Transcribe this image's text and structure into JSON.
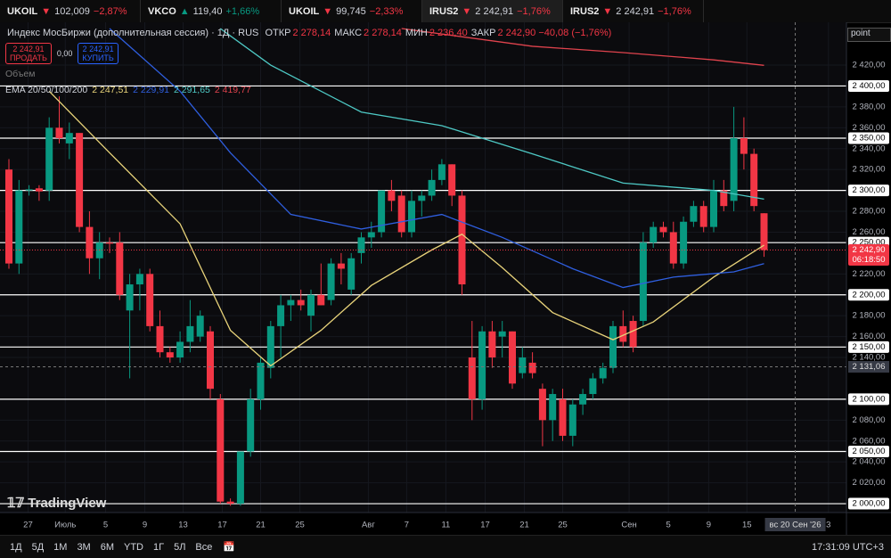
{
  "tabs": [
    {
      "symbol": "UKOIL",
      "price": "102,009",
      "change": "−2,87%",
      "dir": "down"
    },
    {
      "symbol": "VKCO",
      "price": "119,40",
      "change": "+1,66%",
      "dir": "up"
    },
    {
      "symbol": "UKOIL",
      "price": "99,745",
      "change": "−2,33%",
      "dir": "down"
    },
    {
      "symbol": "IRUS2",
      "price": "2 242,91",
      "change": "−1,76%",
      "dir": "down"
    },
    {
      "symbol": "IRUS2",
      "price": "2 242,91",
      "change": "−1,76%",
      "dir": "down"
    }
  ],
  "search": "point",
  "legend": {
    "title": "Индекс МосБиржи (дополнительная сессия) · 1Д · RUS",
    "ohlc": [
      {
        "label": "ОТКР",
        "value": "2 278,14"
      },
      {
        "label": "МАКС",
        "value": "2 278,14"
      },
      {
        "label": "МИН",
        "value": "2 236,40"
      },
      {
        "label": "ЗАКР",
        "value": "2 242,90"
      }
    ],
    "change": "−40,08 (−1,76%)",
    "sell": {
      "price": "2 242,91",
      "label": "ПРОДАТЬ"
    },
    "spread": "0,00",
    "buy": {
      "price": "2 242,91",
      "label": "КУПИТЬ"
    },
    "volume": "Объем",
    "ema": {
      "label": "EMA 20/50/100/200",
      "values": [
        "2 247,51",
        "2 229,91",
        "2 291,65",
        "2 419,77"
      ]
    }
  },
  "watermark": "TradingView",
  "toolbar": {
    "ranges": [
      "1Д",
      "5Д",
      "1М",
      "3М",
      "6М",
      "YTD",
      "1Г",
      "5Л",
      "Все"
    ],
    "clock": "17:31:09 UTC+3"
  },
  "chart_data": {
    "type": "candlestick",
    "up_color": "#089981",
    "down_color": "#f23645",
    "ylim": [
      1991.5,
      2461
    ],
    "yticks": [
      {
        "value": 2420,
        "label": "2 420,00"
      },
      {
        "value": 2380,
        "label": "2 380,00"
      },
      {
        "value": 2360,
        "label": "2 360,00"
      },
      {
        "value": 2340,
        "label": "2 340,00"
      },
      {
        "value": 2320,
        "label": "2 320,00"
      },
      {
        "value": 2280,
        "label": "2 280,00"
      },
      {
        "value": 2260,
        "label": "2 260,00"
      },
      {
        "value": 2220,
        "label": "2 220,00"
      },
      {
        "value": 2180,
        "label": "2 180,00"
      },
      {
        "value": 2160,
        "label": "2 160,00"
      },
      {
        "value": 2140,
        "label": "2 140,00"
      },
      {
        "value": 2080,
        "label": "2 080,00"
      },
      {
        "value": 2060,
        "label": "2 060,00"
      },
      {
        "value": 2040,
        "label": "2 040,00"
      },
      {
        "value": 2020,
        "label": "2 020,00"
      }
    ],
    "levels": [
      {
        "value": 2400,
        "label": "2 400,00"
      },
      {
        "value": 2350,
        "label": "2 350,00"
      },
      {
        "value": 2300,
        "label": "2 300,00"
      },
      {
        "value": 2250,
        "label": "2 250,00"
      },
      {
        "value": 2200,
        "label": "2 200,00"
      },
      {
        "value": 2150,
        "label": "2 150,00"
      },
      {
        "value": 2100,
        "label": "2 100,00"
      },
      {
        "value": 2050,
        "label": "2 050,00"
      },
      {
        "value": 2000,
        "label": "2 000,00"
      }
    ],
    "last_price": {
      "value": 2242.9,
      "label": "2 242,90",
      "timer": "06:18:50"
    },
    "crosshair": {
      "value": 2131.06,
      "label": "2 131,06",
      "x": 78.1,
      "x_label": "вс 20 Сен '26"
    },
    "xticks": [
      {
        "value": 1.9,
        "label": "27"
      },
      {
        "value": 5.6,
        "label": "Июль"
      },
      {
        "value": 9.6,
        "label": "5"
      },
      {
        "value": 13.5,
        "label": "9"
      },
      {
        "value": 17.3,
        "label": "13"
      },
      {
        "value": 21.2,
        "label": "17"
      },
      {
        "value": 25,
        "label": "21"
      },
      {
        "value": 28.9,
        "label": "25"
      },
      {
        "value": 35.7,
        "label": "Авг"
      },
      {
        "value": 39.5,
        "label": "7"
      },
      {
        "value": 43.4,
        "label": "11"
      },
      {
        "value": 47.3,
        "label": "17"
      },
      {
        "value": 51.2,
        "label": "21"
      },
      {
        "value": 55,
        "label": "25"
      },
      {
        "value": 61.6,
        "label": "Сен"
      },
      {
        "value": 65.5,
        "label": "5"
      },
      {
        "value": 69.5,
        "label": "9"
      },
      {
        "value": 73.3,
        "label": "15"
      },
      {
        "value": 81.4,
        "label": "3"
      }
    ],
    "candles": [
      {
        "o": 2320,
        "h": 2330,
        "l": 2225,
        "c": 2230
      },
      {
        "o": 2230,
        "h": 2310,
        "l": 2220,
        "c": 2300
      },
      {
        "o": 2300,
        "h": 2305,
        "l": 2295,
        "c": 2301
      },
      {
        "o": 2302,
        "h": 2305,
        "l": 2290,
        "c": 2299
      },
      {
        "o": 2300,
        "h": 2370,
        "l": 2290,
        "c": 2360
      },
      {
        "o": 2360,
        "h": 2390,
        "l": 2345,
        "c": 2350
      },
      {
        "o": 2345,
        "h": 2365,
        "l": 2330,
        "c": 2355
      },
      {
        "o": 2355,
        "h": 2355,
        "l": 2260,
        "c": 2265
      },
      {
        "o": 2265,
        "h": 2280,
        "l": 2220,
        "c": 2235
      },
      {
        "o": 2235,
        "h": 2260,
        "l": 2215,
        "c": 2250
      },
      {
        "o": 2250,
        "h": 2255,
        "l": 2240,
        "c": 2249
      },
      {
        "o": 2250,
        "h": 2260,
        "l": 2195,
        "c": 2200
      },
      {
        "o": 2185,
        "h": 2220,
        "l": 2120,
        "c": 2210
      },
      {
        "o": 2210,
        "h": 2225,
        "l": 2185,
        "c": 2220
      },
      {
        "o": 2220,
        "h": 2225,
        "l": 2165,
        "c": 2170
      },
      {
        "o": 2170,
        "h": 2185,
        "l": 2140,
        "c": 2145
      },
      {
        "o": 2145,
        "h": 2150,
        "l": 2135,
        "c": 2140
      },
      {
        "o": 2140,
        "h": 2165,
        "l": 2135,
        "c": 2155
      },
      {
        "o": 2155,
        "h": 2195,
        "l": 2145,
        "c": 2170
      },
      {
        "o": 2160,
        "h": 2185,
        "l": 2155,
        "c": 2180
      },
      {
        "o": 2165,
        "h": 2170,
        "l": 2100,
        "c": 2110
      },
      {
        "o": 2100,
        "h": 2105,
        "l": 2000,
        "c": 2002
      },
      {
        "o": 2002,
        "h": 2005,
        "l": 1998,
        "c": 2000
      },
      {
        "o": 2000,
        "h": 2050,
        "l": 1998,
        "c": 2050
      },
      {
        "o": 2050,
        "h": 2110,
        "l": 2045,
        "c": 2100
      },
      {
        "o": 2100,
        "h": 2140,
        "l": 2090,
        "c": 2135
      },
      {
        "o": 2130,
        "h": 2175,
        "l": 2120,
        "c": 2170
      },
      {
        "o": 2170,
        "h": 2200,
        "l": 2140,
        "c": 2190
      },
      {
        "o": 2190,
        "h": 2200,
        "l": 2175,
        "c": 2195
      },
      {
        "o": 2195,
        "h": 2205,
        "l": 2185,
        "c": 2190
      },
      {
        "o": 2180,
        "h": 2205,
        "l": 2165,
        "c": 2200
      },
      {
        "o": 2200,
        "h": 2230,
        "l": 2190,
        "c": 2190
      },
      {
        "o": 2195,
        "h": 2235,
        "l": 2190,
        "c": 2230
      },
      {
        "o": 2230,
        "h": 2240,
        "l": 2210,
        "c": 2225
      },
      {
        "o": 2205,
        "h": 2240,
        "l": 2200,
        "c": 2235
      },
      {
        "o": 2240,
        "h": 2260,
        "l": 2230,
        "c": 2255
      },
      {
        "o": 2255,
        "h": 2270,
        "l": 2245,
        "c": 2260
      },
      {
        "o": 2260,
        "h": 2300,
        "l": 2255,
        "c": 2300
      },
      {
        "o": 2300,
        "h": 2310,
        "l": 2280,
        "c": 2290
      },
      {
        "o": 2295,
        "h": 2300,
        "l": 2255,
        "c": 2260
      },
      {
        "o": 2260,
        "h": 2300,
        "l": 2255,
        "c": 2290
      },
      {
        "o": 2290,
        "h": 2300,
        "l": 2275,
        "c": 2295
      },
      {
        "o": 2295,
        "h": 2320,
        "l": 2290,
        "c": 2310
      },
      {
        "o": 2310,
        "h": 2330,
        "l": 2305,
        "c": 2325
      },
      {
        "o": 2325,
        "h": 2325,
        "l": 2285,
        "c": 2295
      },
      {
        "o": 2295,
        "h": 2300,
        "l": 2200,
        "c": 2210
      },
      {
        "o": 2140,
        "h": 2175,
        "l": 2080,
        "c": 2100
      },
      {
        "o": 2100,
        "h": 2170,
        "l": 2090,
        "c": 2165
      },
      {
        "o": 2165,
        "h": 2175,
        "l": 2130,
        "c": 2140
      },
      {
        "o": 2160,
        "h": 2175,
        "l": 2140,
        "c": 2165
      },
      {
        "o": 2165,
        "h": 2165,
        "l": 2110,
        "c": 2115
      },
      {
        "o": 2125,
        "h": 2150,
        "l": 2120,
        "c": 2140
      },
      {
        "o": 2135,
        "h": 2145,
        "l": 2120,
        "c": 2125
      },
      {
        "o": 2110,
        "h": 2115,
        "l": 2055,
        "c": 2080
      },
      {
        "o": 2080,
        "h": 2110,
        "l": 2060,
        "c": 2105
      },
      {
        "o": 2100,
        "h": 2110,
        "l": 2060,
        "c": 2065
      },
      {
        "o": 2065,
        "h": 2100,
        "l": 2055,
        "c": 2095
      },
      {
        "o": 2095,
        "h": 2110,
        "l": 2085,
        "c": 2105
      },
      {
        "o": 2105,
        "h": 2125,
        "l": 2100,
        "c": 2120
      },
      {
        "o": 2120,
        "h": 2135,
        "l": 2115,
        "c": 2130
      },
      {
        "o": 2130,
        "h": 2175,
        "l": 2125,
        "c": 2170
      },
      {
        "o": 2170,
        "h": 2185,
        "l": 2150,
        "c": 2155
      },
      {
        "o": 2175,
        "h": 2180,
        "l": 2145,
        "c": 2150
      },
      {
        "o": 2175,
        "h": 2260,
        "l": 2170,
        "c": 2250
      },
      {
        "o": 2250,
        "h": 2270,
        "l": 2245,
        "c": 2265
      },
      {
        "o": 2265,
        "h": 2270,
        "l": 2255,
        "c": 2260
      },
      {
        "o": 2260,
        "h": 2270,
        "l": 2225,
        "c": 2230
      },
      {
        "o": 2230,
        "h": 2275,
        "l": 2225,
        "c": 2270
      },
      {
        "o": 2270,
        "h": 2290,
        "l": 2265,
        "c": 2285
      },
      {
        "o": 2285,
        "h": 2290,
        "l": 2260,
        "c": 2265
      },
      {
        "o": 2265,
        "h": 2310,
        "l": 2260,
        "c": 2300
      },
      {
        "o": 2300,
        "h": 2310,
        "l": 2280,
        "c": 2285
      },
      {
        "o": 2290,
        "h": 2380,
        "l": 2280,
        "c": 2350
      },
      {
        "o": 2350,
        "h": 2370,
        "l": 2320,
        "c": 2335
      },
      {
        "o": 2335,
        "h": 2340,
        "l": 2280,
        "c": 2285
      },
      {
        "o": 2278.14,
        "h": 2278.14,
        "l": 2236.4,
        "c": 2242.9
      }
    ],
    "series": [
      {
        "name": "EMA 20",
        "color": "#e8d37a",
        "x": [
          4,
          10,
          17,
          22,
          26,
          31,
          36,
          42,
          45,
          49,
          54,
          60,
          64,
          70,
          75
        ],
        "values": [
          2395,
          2336,
          2268,
          2166,
          2132,
          2166,
          2209,
          2243,
          2258,
          2226,
          2183,
          2157,
          2174,
          2217,
          2247.51
        ]
      },
      {
        "name": "EMA 50",
        "color": "#2f5fe0",
        "x": [
          10,
          17,
          22,
          28,
          35,
          43,
          49,
          56,
          61,
          66,
          72,
          75
        ],
        "values": [
          2455,
          2395,
          2336,
          2277,
          2263,
          2277,
          2255,
          2225,
          2207,
          2217,
          2222,
          2229.91
        ]
      },
      {
        "name": "EMA 100",
        "color": "#4ec9c5",
        "x": [
          21,
          26,
          35,
          43,
          52,
          61,
          70,
          75
        ],
        "values": [
          2455,
          2420,
          2375,
          2362,
          2335,
          2307,
          2300,
          2291.65
        ]
      },
      {
        "name": "EMA 200",
        "color": "#e0434d",
        "x": [
          39,
          52,
          61,
          70,
          75
        ],
        "values": [
          2455,
          2438,
          2432,
          2425,
          2419.77
        ]
      }
    ]
  }
}
